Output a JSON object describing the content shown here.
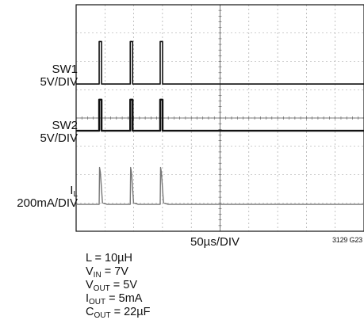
{
  "chart_data": {
    "type": "line",
    "title": "",
    "x_label": "50µs/DIV",
    "x_divisions": 10,
    "y_divisions": 8,
    "grid": true,
    "figure_id": "3129 G23",
    "pulse_times_us": [
      40,
      94,
      146
    ],
    "series": [
      {
        "name": "SW1",
        "scale": "5V/DIV",
        "baseline_div": 5.2,
        "pulse_height_div": 1.5,
        "pulse_width_us": 1.5
      },
      {
        "name": "SW2",
        "scale": "5V/DIV",
        "baseline_div": 3.55,
        "pulse_height_div": 1.1,
        "pulse_width_us": 1.5
      },
      {
        "name": "I",
        "name_sub": "L",
        "scale": "200mA/DIV",
        "baseline_div": 0.95,
        "peak_height_div": 1.3,
        "decay_us": 3
      }
    ]
  },
  "conditions": [
    {
      "main": "L = 10µH",
      "sub": "",
      "rest": ""
    },
    {
      "main": "V",
      "sub": "IN",
      "rest": " = 7V"
    },
    {
      "main": "V",
      "sub": "OUT",
      "rest": " = 5V"
    },
    {
      "main": "I",
      "sub": "OUT",
      "rest": " = 5mA"
    },
    {
      "main": "C",
      "sub": "OUT",
      "rest": " = 22µF"
    }
  ],
  "colors": {
    "grid": "#9a9a9a",
    "frame": "#111111",
    "trace_sw": "#111111",
    "trace_il": "#777777"
  }
}
